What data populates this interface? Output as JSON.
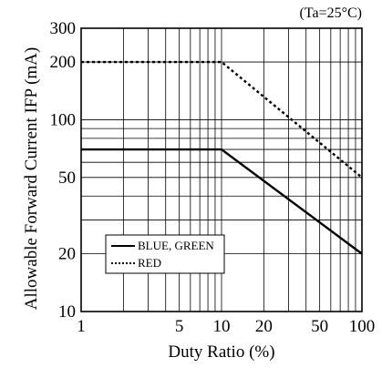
{
  "chart_data": {
    "type": "line",
    "title": "",
    "condition_note": "(Ta=25°C)",
    "xlabel": "Duty Ratio (%)",
    "ylabel": "Allowable Forward Current IFP (mA)",
    "xscale": "log",
    "yscale": "log",
    "xlim": [
      1,
      100
    ],
    "ylim": [
      10,
      300
    ],
    "grid": true,
    "legend_position": "bottom-left",
    "x_ticks": [
      {
        "value": 1,
        "label": "1"
      },
      {
        "value": 5,
        "label": "5"
      },
      {
        "value": 10,
        "label": "10"
      },
      {
        "value": 20,
        "label": "20"
      },
      {
        "value": 50,
        "label": "50"
      },
      {
        "value": 100,
        "label": "100"
      }
    ],
    "y_ticks": [
      {
        "value": 10,
        "label": "10"
      },
      {
        "value": 20,
        "label": "20"
      },
      {
        "value": 50,
        "label": "50"
      },
      {
        "value": 100,
        "label": "100"
      },
      {
        "value": 200,
        "label": "200"
      },
      {
        "value": 300,
        "label": "300"
      }
    ],
    "series": [
      {
        "name": "BLUE, GREEN",
        "style": "solid",
        "color": "#000000",
        "x": [
          1,
          10,
          100
        ],
        "y": [
          70,
          70,
          20
        ]
      },
      {
        "name": "RED",
        "style": "dotted",
        "color": "#000000",
        "x": [
          1,
          10,
          100
        ],
        "y": [
          200,
          200,
          50
        ]
      }
    ]
  }
}
